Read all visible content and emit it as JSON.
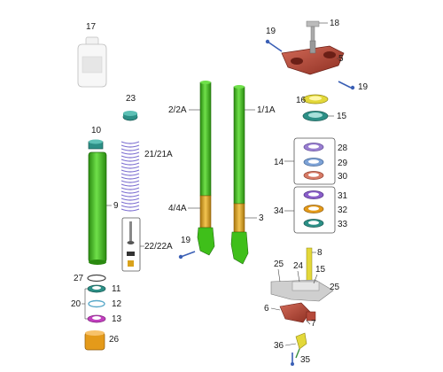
{
  "callouts": {
    "c17": "17",
    "c18": "18",
    "c19a": "19",
    "c5": "5",
    "c19b": "19",
    "c23": "23",
    "c22a": "2/2A",
    "c11a": "1/1A",
    "c16": "16",
    "c15a": "15",
    "c10": "10",
    "c2121a": "21/21A",
    "c14": "14",
    "c28": "28",
    "c29": "29",
    "c30": "30",
    "c9": "9",
    "c44a": "4/4A",
    "c3": "3",
    "c34": "34",
    "c31": "31",
    "c32": "32",
    "c33": "33",
    "c2222a": "22/22A",
    "c19c": "19",
    "c8": "8",
    "c25a": "25",
    "c24": "24",
    "c15b": "15",
    "c25b": "25",
    "c27": "27",
    "c11": "11",
    "c20": "20",
    "c12": "12",
    "c13": "13",
    "c6": "6",
    "c7": "7",
    "c26": "26",
    "c36": "36",
    "c35": "35"
  },
  "colors": {
    "green": "#3fbf1a",
    "green_dark": "#2a8a10",
    "gold": "#d9a21b",
    "red": "#b5493a",
    "teal": "#2c8f86",
    "magenta": "#c23fbf",
    "lilac": "#9a7fd1",
    "yellow": "#e3d83a",
    "orange": "#e49a1a",
    "icon_blue": "#3a5fb5"
  }
}
